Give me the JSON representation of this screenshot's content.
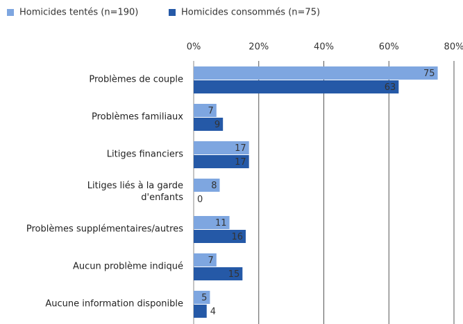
{
  "chart_data": {
    "type": "bar",
    "orientation": "horizontal",
    "categories": [
      "Problèmes de couple",
      "Problèmes familiaux",
      "Litiges financiers",
      "Litiges liés à la garde d'enfants",
      "Problèmes supplémentaires/autres",
      "Aucun problème indiqué",
      "Aucune information disponible"
    ],
    "series": [
      {
        "name": "Homicides tentés (n=190)",
        "color": "#7ea6e0",
        "values": [
          75,
          7,
          17,
          8,
          11,
          7,
          5
        ]
      },
      {
        "name": "Homicides consommés (n=75)",
        "color": "#2559a7",
        "values": [
          63,
          9,
          17,
          0,
          16,
          15,
          4
        ]
      }
    ],
    "xlim": [
      0,
      80
    ],
    "xticks": [
      {
        "value": 0,
        "label": "0%"
      },
      {
        "value": 20,
        "label": "20%"
      },
      {
        "value": 40,
        "label": "40%"
      },
      {
        "value": 60,
        "label": "60%"
      },
      {
        "value": 80,
        "label": "80%"
      }
    ],
    "grid": true,
    "legend": "top-left"
  }
}
